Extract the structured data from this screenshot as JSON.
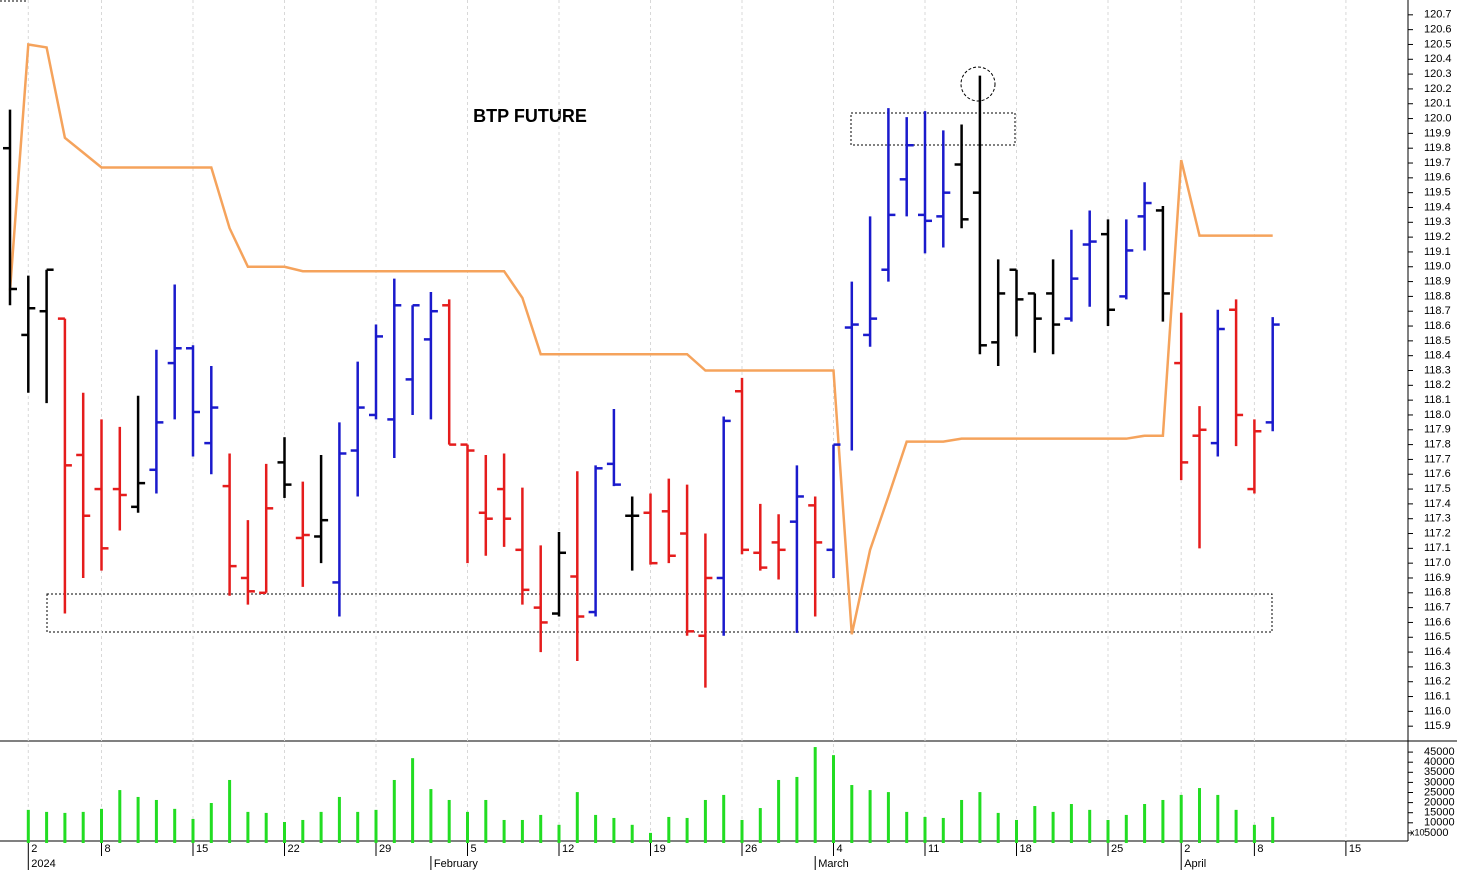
{
  "chart_data": [
    {
      "type": "ohlc",
      "title": "BTP FUTURE",
      "categories": [
        "2023-12-29",
        "2024-01-02",
        "2024-01-03",
        "2024-01-04",
        "2024-01-05",
        "2024-01-08",
        "2024-01-09",
        "2024-01-10",
        "2024-01-11",
        "2024-01-12",
        "2024-01-15",
        "2024-01-16",
        "2024-01-17",
        "2024-01-18",
        "2024-01-19",
        "2024-01-22",
        "2024-01-23",
        "2024-01-24",
        "2024-01-25",
        "2024-01-26",
        "2024-01-29",
        "2024-01-30",
        "2024-01-31",
        "2024-02-01",
        "2024-02-02",
        "2024-02-05",
        "2024-02-06",
        "2024-02-07",
        "2024-02-08",
        "2024-02-09",
        "2024-02-12",
        "2024-02-13",
        "2024-02-14",
        "2024-02-15",
        "2024-02-16",
        "2024-02-19",
        "2024-02-20",
        "2024-02-21",
        "2024-02-22",
        "2024-02-23",
        "2024-02-26",
        "2024-02-27",
        "2024-02-28",
        "2024-02-29",
        "2024-03-01",
        "2024-03-04",
        "2024-03-05",
        "2024-03-06",
        "2024-03-07",
        "2024-03-08",
        "2024-03-11",
        "2024-03-12",
        "2024-03-13",
        "2024-03-14",
        "2024-03-15",
        "2024-03-18",
        "2024-03-19",
        "2024-03-20",
        "2024-03-21",
        "2024-03-22",
        "2024-03-25",
        "2024-03-26",
        "2024-03-27",
        "2024-03-28",
        "2024-04-02",
        "2024-04-03",
        "2024-04-04",
        "2024-04-05",
        "2024-04-08",
        "2024-04-09"
      ],
      "open": [
        119.8,
        118.54,
        118.7,
        118.65,
        117.73,
        117.5,
        117.5,
        117.38,
        117.63,
        118.35,
        118.45,
        117.81,
        117.52,
        116.9,
        116.8,
        117.68,
        117.17,
        117.18,
        116.87,
        117.76,
        118.0,
        117.97,
        118.24,
        118.51,
        118.74,
        117.8,
        117.34,
        117.5,
        117.09,
        116.7,
        116.66,
        116.91,
        116.67,
        117.67,
        117.32,
        117.34,
        117.35,
        117.2,
        116.51,
        116.9,
        118.16,
        117.07,
        117.14,
        117.28,
        117.39,
        117.09,
        118.59,
        118.54,
        118.98,
        119.59,
        119.35,
        119.34,
        119.69,
        119.5,
        118.49,
        118.98,
        118.82,
        118.82,
        118.65,
        119.15,
        119.22,
        118.8,
        119.34,
        119.38,
        118.35,
        117.86,
        117.81,
        118.71,
        117.5,
        117.95
      ],
      "high": [
        120.06,
        118.94,
        118.98,
        118.65,
        118.15,
        117.97,
        117.92,
        118.13,
        118.44,
        118.88,
        118.47,
        118.33,
        117.74,
        117.29,
        117.67,
        117.85,
        117.55,
        117.73,
        117.95,
        118.36,
        118.61,
        118.92,
        118.74,
        118.83,
        118.78,
        117.8,
        117.73,
        117.74,
        117.51,
        117.12,
        117.21,
        117.62,
        117.66,
        118.04,
        117.45,
        117.47,
        117.57,
        117.53,
        117.2,
        117.99,
        118.25,
        117.4,
        117.33,
        117.66,
        117.45,
        117.8,
        118.9,
        119.34,
        120.07,
        120.01,
        120.05,
        119.92,
        119.96,
        120.29,
        119.05,
        118.98,
        118.82,
        119.05,
        119.25,
        119.38,
        119.32,
        119.32,
        119.57,
        119.41,
        118.69,
        118.06,
        118.71,
        118.78,
        117.97,
        118.66
      ],
      "low": [
        118.74,
        118.15,
        118.08,
        116.66,
        116.9,
        116.95,
        117.22,
        117.34,
        117.47,
        117.97,
        117.72,
        117.6,
        116.78,
        116.72,
        116.8,
        117.44,
        116.84,
        117.0,
        116.64,
        117.45,
        117.97,
        117.71,
        118.0,
        117.97,
        117.8,
        117.0,
        117.05,
        117.11,
        116.72,
        116.4,
        116.64,
        116.34,
        116.64,
        117.52,
        116.95,
        116.99,
        117.0,
        116.51,
        116.16,
        116.51,
        117.06,
        116.95,
        116.89,
        116.53,
        116.64,
        116.9,
        117.76,
        118.46,
        118.9,
        119.34,
        119.09,
        119.13,
        119.26,
        118.41,
        118.33,
        118.53,
        118.42,
        118.41,
        118.63,
        118.73,
        118.6,
        118.78,
        119.11,
        118.63,
        117.56,
        117.1,
        117.72,
        117.79,
        117.47,
        117.89
      ],
      "close": [
        118.85,
        118.72,
        118.98,
        117.66,
        117.32,
        117.1,
        117.46,
        117.54,
        117.95,
        118.45,
        118.02,
        118.05,
        116.98,
        116.81,
        117.37,
        117.53,
        117.19,
        117.29,
        117.74,
        118.05,
        118.53,
        118.74,
        118.74,
        118.7,
        117.8,
        117.76,
        117.3,
        117.3,
        116.82,
        116.6,
        117.07,
        116.64,
        117.64,
        117.53,
        117.32,
        117.0,
        117.05,
        116.54,
        116.9,
        117.96,
        117.09,
        116.97,
        117.09,
        117.45,
        117.14,
        117.8,
        118.61,
        118.65,
        119.35,
        119.82,
        119.31,
        119.5,
        119.32,
        118.47,
        118.82,
        118.78,
        118.65,
        118.61,
        118.92,
        119.17,
        118.71,
        119.11,
        119.43,
        118.82,
        117.68,
        117.9,
        118.58,
        118.0,
        117.89,
        118.61
      ],
      "colors": [
        "#000000",
        "#000000",
        "#000000",
        "#e51c1c",
        "#e51c1c",
        "#e51c1c",
        "#e51c1c",
        "#000000",
        "#1a1acc",
        "#1a1acc",
        "#1a1acc",
        "#1a1acc",
        "#e51c1c",
        "#e51c1c",
        "#e51c1c",
        "#000000",
        "#e51c1c",
        "#000000",
        "#1a1acc",
        "#1a1acc",
        "#1a1acc",
        "#1a1acc",
        "#1a1acc",
        "#1a1acc",
        "#e51c1c",
        "#e51c1c",
        "#e51c1c",
        "#e51c1c",
        "#e51c1c",
        "#e51c1c",
        "#000000",
        "#e51c1c",
        "#1a1acc",
        "#1a1acc",
        "#000000",
        "#e51c1c",
        "#e51c1c",
        "#e51c1c",
        "#e51c1c",
        "#1a1acc",
        "#e51c1c",
        "#e51c1c",
        "#e51c1c",
        "#1a1acc",
        "#e51c1c",
        "#1a1acc",
        "#1a1acc",
        "#1a1acc",
        "#1a1acc",
        "#1a1acc",
        "#1a1acc",
        "#1a1acc",
        "#000000",
        "#000000",
        "#000000",
        "#000000",
        "#000000",
        "#000000",
        "#1a1acc",
        "#1a1acc",
        "#000000",
        "#1a1acc",
        "#1a1acc",
        "#000000",
        "#e51c1c",
        "#e51c1c",
        "#1a1acc",
        "#e51c1c",
        "#e51c1c",
        "#1a1acc"
      ],
      "line": {
        "color": "#f5a35c",
        "values": [
          118.84,
          120.5,
          120.48,
          119.87,
          119.77,
          119.67,
          119.67,
          119.67,
          119.67,
          119.67,
          119.67,
          119.67,
          119.26,
          119.0,
          119.0,
          119.0,
          118.97,
          118.97,
          118.97,
          118.97,
          118.97,
          118.97,
          118.97,
          118.97,
          118.97,
          118.97,
          118.97,
          118.97,
          118.79,
          118.41,
          118.41,
          118.41,
          118.41,
          118.41,
          118.41,
          118.41,
          118.41,
          118.41,
          118.3,
          118.3,
          118.3,
          118.3,
          118.3,
          118.3,
          118.3,
          118.3,
          116.52,
          117.09,
          117.45,
          117.82,
          117.82,
          117.82,
          117.84,
          117.84,
          117.84,
          117.84,
          117.84,
          117.84,
          117.84,
          117.84,
          117.84,
          117.84,
          117.86,
          117.86,
          119.72,
          119.21,
          119.21,
          119.21,
          119.21,
          119.21
        ]
      },
      "ylim": [
        115.8,
        120.8
      ],
      "yticks": [
        115.9,
        {
          "value": 116.0,
          "label": "116.0"
        },
        116.1,
        116.2,
        116.3,
        116.4,
        116.5,
        116.6,
        116.7,
        116.8,
        116.9,
        {
          "value": 117.0,
          "label": "117.0"
        },
        117.1,
        117.2,
        117.3,
        117.4,
        117.5,
        117.6,
        117.7,
        117.8,
        117.9,
        {
          "value": 118.0,
          "label": "118.0"
        },
        118.1,
        118.2,
        118.3,
        118.4,
        118.5,
        118.6,
        118.7,
        118.8,
        118.9,
        {
          "value": 119.0,
          "label": "119.0"
        },
        119.1,
        119.2,
        119.3,
        119.4,
        119.5,
        119.6,
        119.7,
        119.8,
        119.9,
        {
          "value": 120.0,
          "label": "120.0"
        },
        120.1,
        120.2,
        120.3,
        120.4,
        120.5,
        120.6,
        120.7
      ]
    },
    {
      "type": "bar",
      "color": "#22dd22",
      "unit_note": "x10",
      "values": [
        null,
        16400,
        15400,
        14900,
        15400,
        16900,
        26200,
        22800,
        21300,
        16900,
        11900,
        19800,
        31200,
        15400,
        14900,
        10400,
        11400,
        15400,
        22800,
        15400,
        16400,
        31200,
        42000,
        26700,
        21300,
        15400,
        21300,
        11400,
        11400,
        13900,
        9000,
        25200,
        13900,
        12400,
        9000,
        5000,
        12900,
        12400,
        21300,
        23800,
        11400,
        17300,
        31200,
        32700,
        47500,
        43500,
        28700,
        26200,
        25200,
        15400,
        12900,
        12400,
        21300,
        25200,
        14900,
        11400,
        18300,
        15400,
        19300,
        16400,
        11400,
        13900,
        19300,
        21300,
        23800,
        27200,
        23800,
        16400,
        9000,
        12900
      ],
      "ylim": [
        0,
        50000
      ],
      "yticks": [
        5000,
        10000,
        15000,
        20000,
        25000,
        30000,
        35000,
        40000,
        45000
      ],
      "xticks": [
        {
          "value": "2024-01-02",
          "label": "2"
        },
        {
          "value": "2024-01-08",
          "label": "8"
        },
        {
          "value": "2024-01-15",
          "label": "15"
        },
        {
          "value": "2024-01-22",
          "label": "22"
        },
        {
          "value": "2024-01-29",
          "label": "29"
        },
        {
          "value": "2024-02-05",
          "label": "5"
        },
        {
          "value": "2024-02-12",
          "label": "12"
        },
        {
          "value": "2024-02-19",
          "label": "19"
        },
        {
          "value": "2024-02-26",
          "label": "26"
        },
        {
          "value": "2024-03-04",
          "label": "4"
        },
        {
          "value": "2024-03-11",
          "label": "11"
        },
        {
          "value": "2024-03-18",
          "label": "18"
        },
        {
          "value": "2024-03-25",
          "label": "25"
        },
        {
          "value": "2024-04-02",
          "label": "2"
        },
        {
          "value": "2024-04-08",
          "label": "8"
        },
        {
          "value": "2024-04-15",
          "label": "15"
        }
      ],
      "month_labels": [
        {
          "value": "2024-01-02",
          "label": "2024"
        },
        {
          "value": "2024-02-01",
          "label": "February"
        },
        {
          "value": "2024-03-01",
          "label": "March"
        },
        {
          "value": "2024-04-02",
          "label": "April"
        }
      ]
    }
  ]
}
